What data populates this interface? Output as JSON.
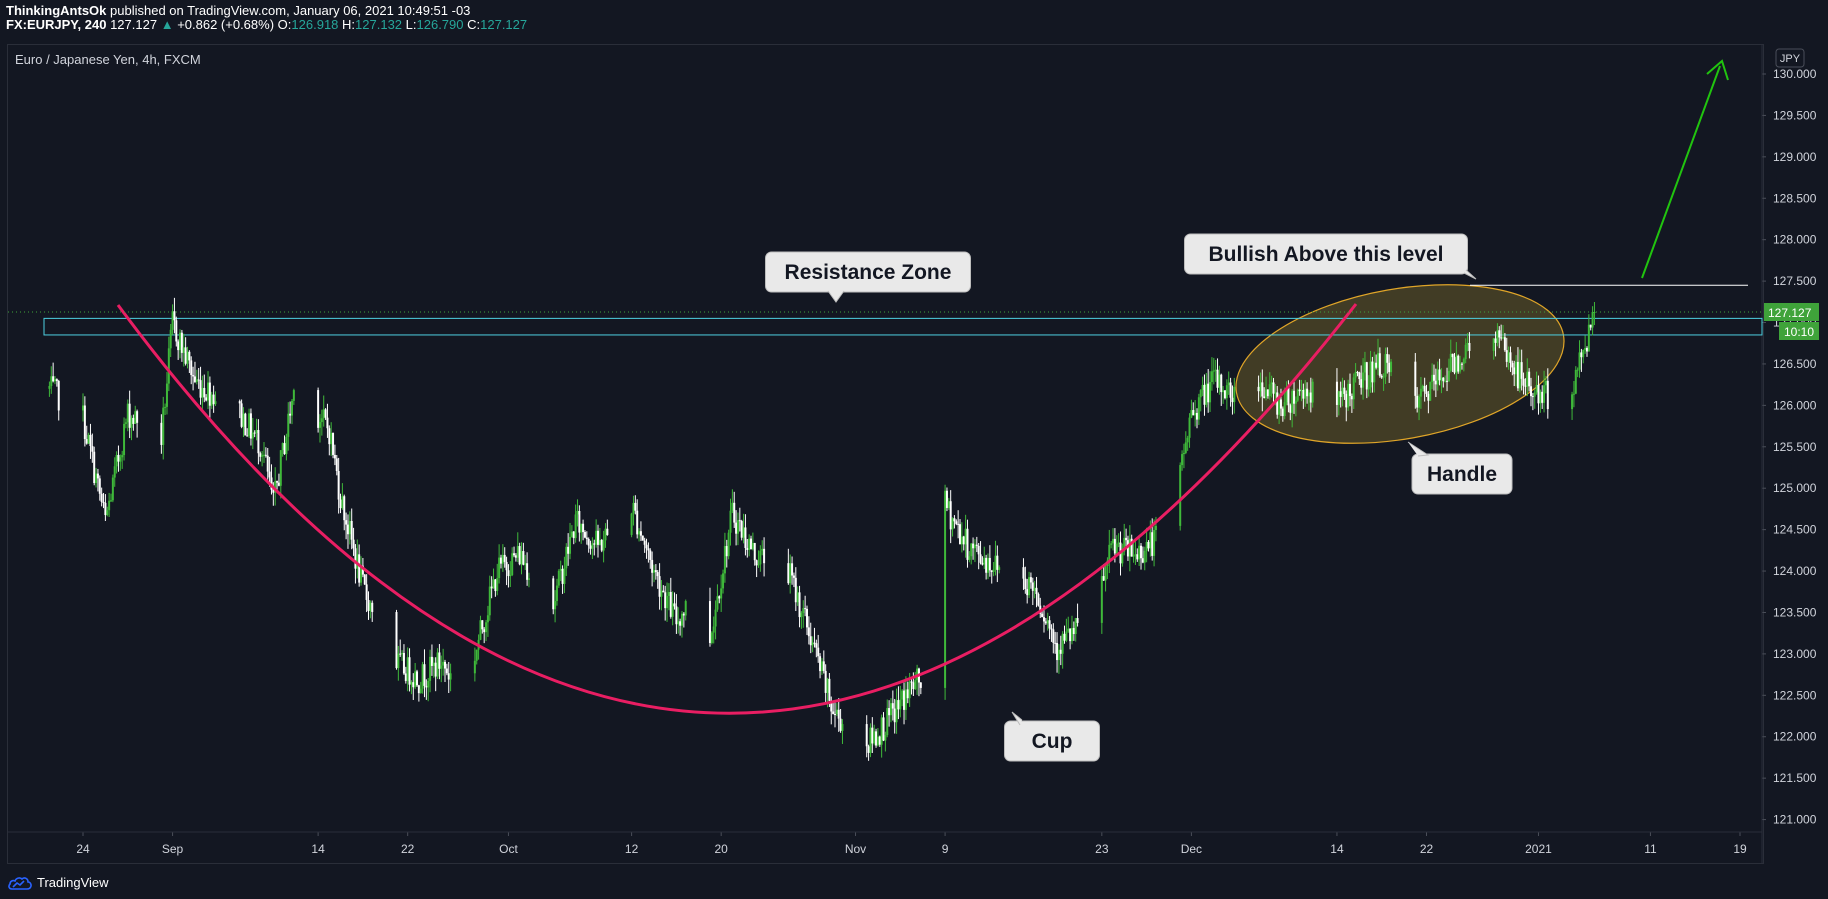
{
  "header": {
    "author": "ThinkingAntsOk",
    "published": "published on TradingView.com, January 06, 2021 10:49:51 -03",
    "symbol": "FX:EURJPY, 240",
    "last": "127.127",
    "change": "+0.862 (+0.68%)",
    "o_label": "O:",
    "o_value": "126.918",
    "h_label": "H:",
    "h_value": "127.132",
    "l_label": "L:",
    "l_value": "126.790",
    "c_label": "C:",
    "c_value": "127.127"
  },
  "symbol_title": "Euro / Japanese Yen, 4h, FXCM",
  "currency_badge": "JPY",
  "last_price_label": "127.127",
  "countdown_label": "10:10",
  "footer": {
    "brand": "TradingView"
  },
  "annotations": {
    "resistance": "Resistance Zone",
    "bullish": "Bullish Above this level",
    "handle": "Handle",
    "cup": "Cup"
  },
  "colors": {
    "background": "#131722",
    "candle_up": "#3fb93a",
    "candle_down": "#ffffff",
    "cup_curve": "#e91e63",
    "resistance_box": "#4dd0e1",
    "handle_fill": "#4a4326",
    "handle_border": "#e0a528",
    "arrow": "#21c40f",
    "last_price": "#3fa33a"
  },
  "chart_data": {
    "type": "candlestick",
    "symbol": "EURJPY",
    "timeframe": "4h",
    "ylim": [
      120.85,
      130.35
    ],
    "y_ticks": [
      "121.000",
      "121.500",
      "122.000",
      "122.500",
      "123.000",
      "123.500",
      "124.000",
      "124.500",
      "125.000",
      "125.500",
      "126.000",
      "126.500",
      "127.000",
      "127.500",
      "128.000",
      "128.500",
      "129.000",
      "129.500",
      "130.000"
    ],
    "x_ticks": [
      "24",
      "Sep",
      "14",
      "22",
      "Oct",
      "12",
      "20",
      "Nov",
      "9",
      "23",
      "Dec",
      "14",
      "22",
      "2021",
      "11",
      "19"
    ],
    "close_path": [
      [
        "Aug 21",
        126.2
      ],
      [
        "Aug 24",
        125.85
      ],
      [
        "Aug 26",
        124.6
      ],
      [
        "Aug 28",
        125.9
      ],
      [
        "Aug 31",
        125.6
      ],
      [
        "Sep 01",
        127.0
      ],
      [
        "Sep 03",
        126.3
      ],
      [
        "Sep 07",
        125.9
      ],
      [
        "Sep 09",
        125.5
      ],
      [
        "Sep 10",
        124.8
      ],
      [
        "Sep 12",
        126.3
      ],
      [
        "Sep 15",
        125.7
      ],
      [
        "Sep 16",
        124.9
      ],
      [
        "Sep 18",
        123.8
      ],
      [
        "Sep 21",
        122.9
      ],
      [
        "Sep 23",
        122.7
      ],
      [
        "Sep 25",
        122.9
      ],
      [
        "Sep 27",
        122.5
      ],
      [
        "Sep 30",
        124.0
      ],
      [
        "Oct 02",
        124.2
      ],
      [
        "Oct 05",
        123.6
      ],
      [
        "Oct 07",
        124.6
      ],
      [
        "Oct 09",
        124.3
      ],
      [
        "Oct 12",
        124.8
      ],
      [
        "Oct 14",
        124.0
      ],
      [
        "Oct 16",
        123.4
      ],
      [
        "Oct 18",
        123.8
      ],
      [
        "Oct 19",
        123.2
      ],
      [
        "Oct 21",
        124.7
      ],
      [
        "Oct 23",
        124.2
      ],
      [
        "Oct 26",
        124.0
      ],
      [
        "Oct 28",
        123.2
      ],
      [
        "Oct 30",
        122.3
      ],
      [
        "Nov 02",
        121.9
      ],
      [
        "Nov 04",
        122.2
      ],
      [
        "Nov 06",
        122.6
      ],
      [
        "Nov 08",
        122.8
      ],
      [
        "Nov 09",
        124.8
      ],
      [
        "Nov 11",
        124.3
      ],
      [
        "Nov 13",
        124.1
      ],
      [
        "Nov 15",
        124.0
      ],
      [
        "Nov 17",
        123.8
      ],
      [
        "Nov 19",
        123.1
      ],
      [
        "Nov 22",
        123.4
      ],
      [
        "Nov 24",
        124.3
      ],
      [
        "Nov 26",
        124.2
      ],
      [
        "Nov 29",
        124.5
      ],
      [
        "Dec 01",
        125.9
      ],
      [
        "Dec 03",
        126.3
      ],
      [
        "Dec 05",
        126.1
      ],
      [
        "Dec 07",
        126.3
      ],
      [
        "Dec 09",
        126.0
      ],
      [
        "Dec 11",
        126.2
      ],
      [
        "Dec 14",
        126.0
      ],
      [
        "Dec 16",
        126.3
      ],
      [
        "Dec 18",
        126.5
      ],
      [
        "Dec 21",
        126.0
      ],
      [
        "Dec 23",
        126.3
      ],
      [
        "Dec 25",
        126.6
      ],
      [
        "Dec 28",
        126.9
      ],
      [
        "Dec 30",
        126.4
      ],
      [
        "Jan 01",
        126.1
      ],
      [
        "Jan 04",
        126.2
      ],
      [
        "Jan 06",
        127.127
      ]
    ],
    "resistance_zone": [
      126.85,
      127.05
    ],
    "bullish_level": 127.45,
    "last_price": 127.127
  }
}
